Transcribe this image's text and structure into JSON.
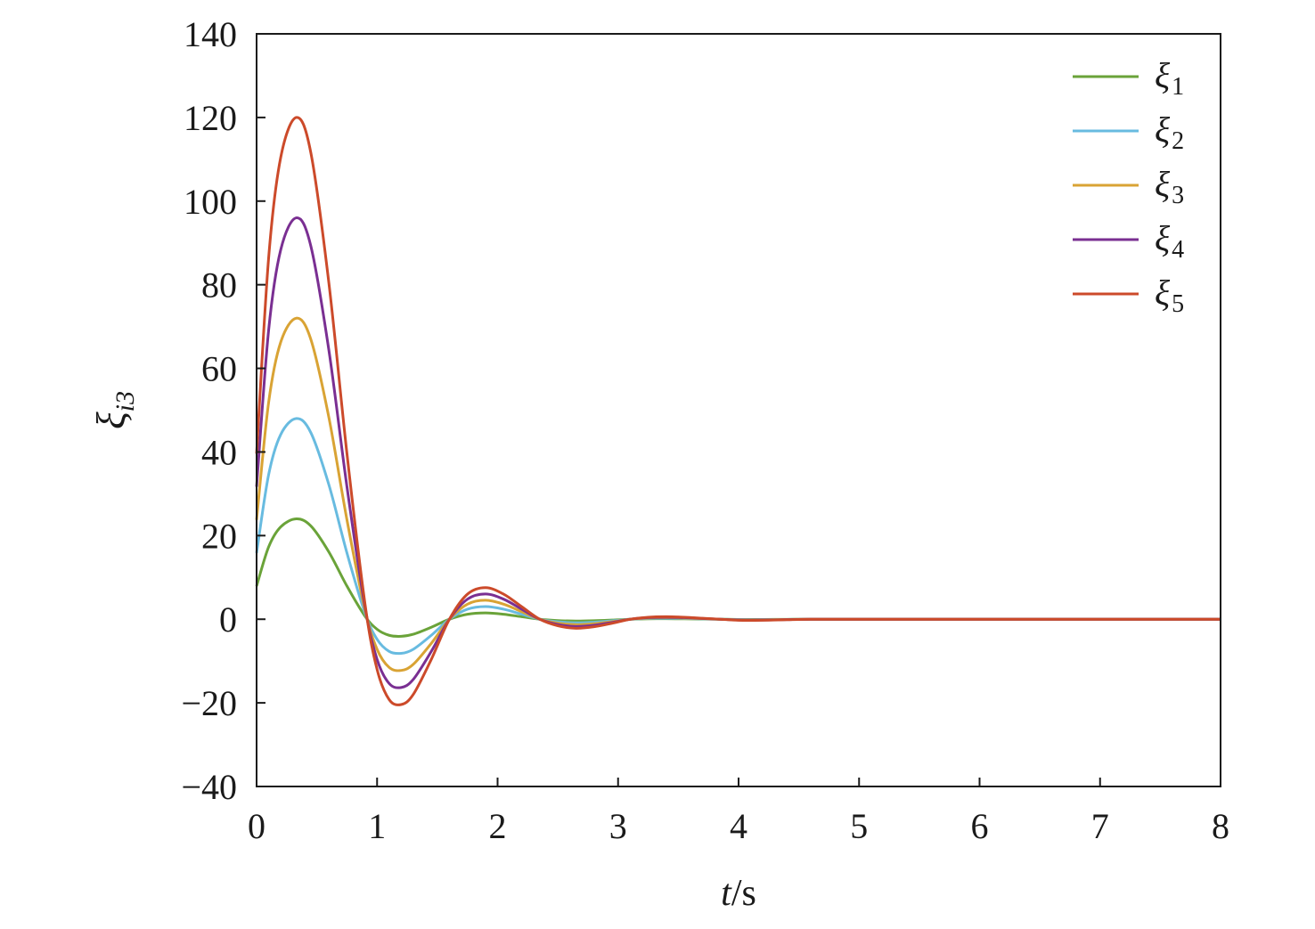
{
  "chart_data": {
    "type": "line",
    "xlabel_var": "t",
    "xlabel_unit": "/s",
    "ylabel_var": "ξ",
    "ylabel_sub": "i3",
    "xlim": [
      0,
      8
    ],
    "ylim": [
      -40,
      140
    ],
    "xticks": [
      0,
      1,
      2,
      3,
      4,
      5,
      6,
      7,
      8
    ],
    "yticks": [
      -40,
      -20,
      0,
      20,
      40,
      60,
      80,
      100,
      120,
      140
    ],
    "ytick_labels": [
      "−40",
      "−20",
      "0",
      "20",
      "40",
      "60",
      "80",
      "100",
      "120",
      "140"
    ],
    "grid": false,
    "legend_position": "top-right",
    "x": [
      0,
      0.1,
      0.2,
      0.33,
      0.45,
      0.6,
      0.75,
      0.9,
      1.0,
      1.1,
      1.2,
      1.3,
      1.45,
      1.6,
      1.75,
      1.9,
      2.05,
      2.2,
      2.35,
      2.5,
      2.65,
      2.8,
      2.95,
      3.1,
      3.25,
      3.4,
      3.55,
      3.7,
      3.85,
      4.0,
      4.2,
      4.4,
      4.6,
      5.0,
      6.0,
      7.0,
      8.0
    ],
    "base_shape": [
      0.33,
      0.72,
      0.92,
      1.0,
      0.93,
      0.67,
      0.33,
      0.03,
      -0.1,
      -0.16,
      -0.17,
      -0.15,
      -0.08,
      0.0,
      0.05,
      0.063,
      0.05,
      0.025,
      0.0,
      -0.013,
      -0.018,
      -0.015,
      -0.008,
      0.0,
      0.004,
      0.005,
      0.004,
      0.002,
      0.0,
      -0.002,
      -0.002,
      -0.001,
      0.0,
      0.0,
      0.0,
      0.0,
      0.0
    ],
    "series": [
      {
        "name": "ξ",
        "sub": "1",
        "color": "#6aa339",
        "scale": 24
      },
      {
        "name": "ξ",
        "sub": "2",
        "color": "#68bbe0",
        "scale": 48
      },
      {
        "name": "ξ",
        "sub": "3",
        "color": "#d9a334",
        "scale": 72
      },
      {
        "name": "ξ",
        "sub": "4",
        "color": "#7a2f92",
        "scale": 96
      },
      {
        "name": "ξ",
        "sub": "5",
        "color": "#cc4a2a",
        "scale": 120
      }
    ]
  }
}
